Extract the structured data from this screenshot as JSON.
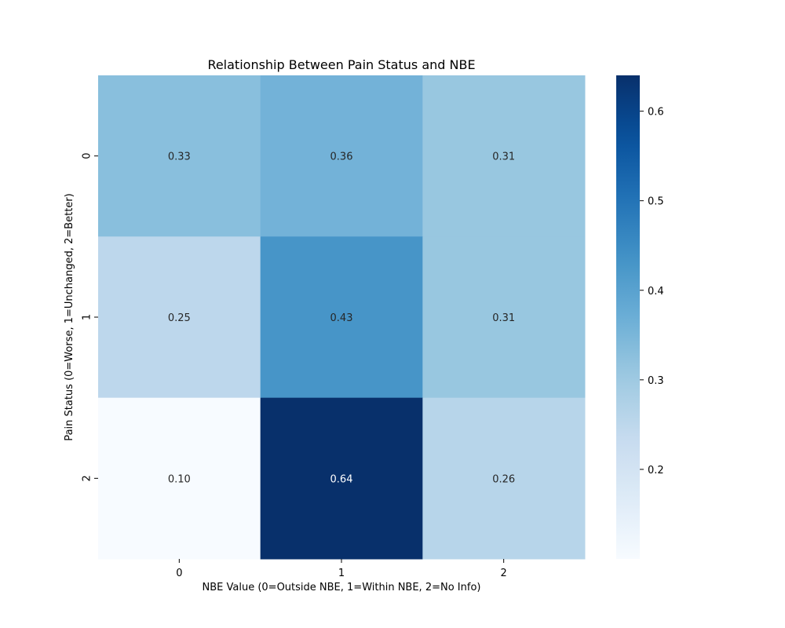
{
  "chart_data": {
    "type": "heatmap",
    "title": "Relationship Between Pain Status and NBE",
    "xlabel": "NBE Value (0=Outside NBE, 1=Within NBE, 2=No Info)",
    "ylabel": "Pain Status (0=Worse, 1=Unchanged, 2=Better)",
    "x_categories": [
      "0",
      "1",
      "2"
    ],
    "y_categories": [
      "0",
      "1",
      "2"
    ],
    "values": [
      [
        0.33,
        0.36,
        0.31
      ],
      [
        0.25,
        0.43,
        0.31
      ],
      [
        0.1,
        0.64,
        0.26
      ]
    ],
    "cell_labels": [
      [
        "0.33",
        "0.36",
        "0.31"
      ],
      [
        "0.25",
        "0.43",
        "0.31"
      ],
      [
        "0.10",
        "0.64",
        "0.26"
      ]
    ],
    "colormap": "Blues",
    "colorbar": {
      "min": 0.1,
      "max": 0.64,
      "ticks": [
        0.2,
        0.3,
        0.4,
        0.5,
        0.6
      ],
      "tick_labels": [
        "0.2",
        "0.3",
        "0.4",
        "0.5",
        "0.6"
      ]
    },
    "colors": {
      "low": "#f7fbff",
      "high": "#08306b",
      "text_dark": "#262626",
      "text_light": "#ffffff"
    }
  }
}
